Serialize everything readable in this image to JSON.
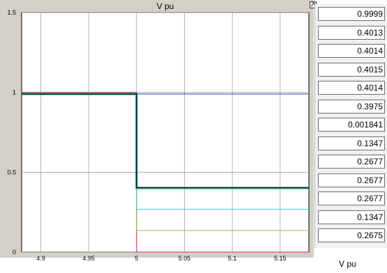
{
  "scope": {
    "title": "V pu",
    "y_ticks": [
      "0",
      "0.5",
      "1",
      "1.5"
    ],
    "x_ticks": [
      "4.9",
      "4.95",
      "5",
      "5.05",
      "5.1",
      "5.15"
    ],
    "colors": {
      "background": "#ffffff",
      "frame": "#d4d0c8",
      "grid": "#a0a0a0"
    }
  },
  "chart_data": {
    "type": "line",
    "title": "V pu",
    "xlim": [
      4.88,
      5.18
    ],
    "ylim": [
      0,
      1.5
    ],
    "x_ticks": [
      4.9,
      4.95,
      5,
      5.05,
      5.1,
      5.15
    ],
    "y_ticks": [
      0,
      0.5,
      1,
      1.5
    ],
    "grid": true,
    "series": [
      {
        "color": "#1f3f9f",
        "width": 1,
        "x": [
          4.88,
          5,
          5,
          5.18
        ],
        "y": [
          0.99,
          0.99,
          0.99,
          0.99
        ]
      },
      {
        "color": "#d42a4a",
        "width": 1,
        "x": [
          4.88,
          5,
          5,
          5.18
        ],
        "y": [
          1.0,
          1.0,
          0.0,
          0.0
        ]
      },
      {
        "color": "#9ab84a",
        "width": 1,
        "x": [
          4.88,
          5,
          5,
          5.18
        ],
        "y": [
          0.99,
          0.99,
          0.135,
          0.135
        ]
      },
      {
        "color": "#48c8d8",
        "width": 1,
        "x": [
          4.88,
          5,
          5,
          5.18
        ],
        "y": [
          0.99,
          0.99,
          0.268,
          0.268
        ]
      },
      {
        "color": "#20b8a8",
        "width": 1,
        "x": [
          4.88,
          5,
          5,
          5.18
        ],
        "y": [
          0.99,
          0.99,
          0.398,
          0.398
        ]
      },
      {
        "color": "#18a050",
        "width": 3,
        "x": [
          4.88,
          5,
          5,
          5.18
        ],
        "y": [
          0.99,
          0.99,
          0.401,
          0.401
        ]
      },
      {
        "color": "#102048",
        "width": 1.5,
        "x": [
          4.88,
          5,
          5,
          5.18
        ],
        "y": [
          0.99,
          0.99,
          0.404,
          0.404
        ]
      }
    ]
  },
  "display": {
    "label": "V pu",
    "values": [
      "0.9999",
      "0.4013",
      "0.4014",
      "0.4015",
      "0.4014",
      "0.3975",
      "0.001841",
      "0.1347",
      "0.2677",
      "0.2677",
      "0.2677",
      "0.1347",
      "0.2675"
    ]
  }
}
